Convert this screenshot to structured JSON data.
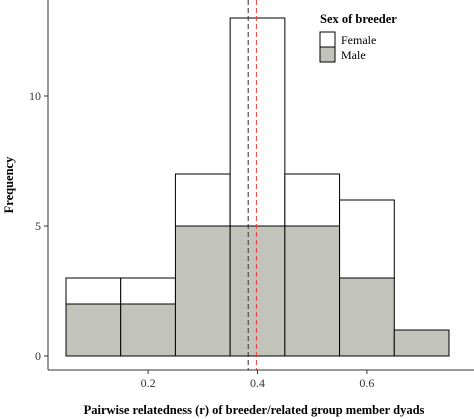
{
  "chart_data": {
    "type": "bar",
    "subtype": "stacked-histogram",
    "xlabel": "Pairwise relatedness (r) of breeder/related group member dyads",
    "ylabel": "Frequency",
    "xlim": [
      0.05,
      0.75
    ],
    "ylim": [
      0,
      13
    ],
    "x_ticks": [
      0.2,
      0.4,
      0.6
    ],
    "x_tick_labels": [
      "0.2",
      "0.4",
      "0.6"
    ],
    "y_ticks": [
      0,
      5,
      10
    ],
    "y_tick_labels": [
      "0",
      "5",
      "10"
    ],
    "bin_width": 0.1,
    "bins": [
      {
        "x0": 0.05,
        "x1": 0.15,
        "male": 2,
        "female": 1,
        "total": 3
      },
      {
        "x0": 0.15,
        "x1": 0.25,
        "male": 2,
        "female": 1,
        "total": 3
      },
      {
        "x0": 0.25,
        "x1": 0.35,
        "male": 5,
        "female": 2,
        "total": 7
      },
      {
        "x0": 0.35,
        "x1": 0.45,
        "male": 5,
        "female": 8,
        "total": 13
      },
      {
        "x0": 0.45,
        "x1": 0.55,
        "male": 5,
        "female": 2,
        "total": 7
      },
      {
        "x0": 0.55,
        "x1": 0.65,
        "male": 3,
        "female": 3,
        "total": 6
      },
      {
        "x0": 0.65,
        "x1": 0.75,
        "male": 1,
        "female": 0,
        "total": 1
      }
    ],
    "reference_lines": [
      {
        "x": 0.383,
        "color": "#333333",
        "style": "dashed"
      },
      {
        "x": 0.398,
        "color": "#e8403a",
        "style": "dashed"
      }
    ],
    "legend": {
      "title": "Sex of breeder",
      "position": "top-right-inside",
      "entries": [
        {
          "label": "Female",
          "color": "#ffffff"
        },
        {
          "label": "Male",
          "color": "#c2c4bb"
        }
      ]
    },
    "grid": false
  }
}
